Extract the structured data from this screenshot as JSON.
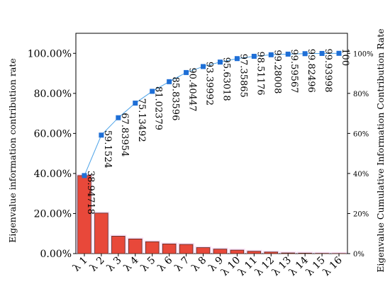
{
  "chart_data": {
    "type": "bar",
    "categories": [
      "λ 1",
      "λ 2",
      "λ 3",
      "λ 4",
      "λ 5",
      "λ 6",
      "λ 7",
      "λ 8",
      "λ 9",
      "λ 10",
      "λ 11",
      "λ 12",
      "λ 13",
      "λ 14",
      "λ 15",
      "λ 16"
    ],
    "series": [
      {
        "type": "bar",
        "axis": "left",
        "values": [
          38.94718,
          20.20522,
          8.6843,
          7.29538,
          5.90887,
          4.81217,
          4.56851,
          2.99545,
          2.23019,
          1.72847,
          1.15311,
          0.76832,
          0.31559,
          0.22929,
          0.11502,
          0.06002
        ],
        "color": "#e8483a"
      },
      {
        "type": "line",
        "axis": "right",
        "values": [
          38.94718,
          59.1524,
          67.83954,
          75.13492,
          81.02379,
          85.83596,
          90.40447,
          93.39992,
          95.63018,
          97.35865,
          98.51176,
          99.28008,
          99.59567,
          99.82496,
          99.93998,
          100
        ],
        "labels": [
          "38.94718",
          "59.1524",
          "67.83954",
          "75.13492",
          "81.02379",
          "85.83596",
          "90.40447",
          "93.39992",
          "95.63018",
          "97.35865",
          "98.51176",
          "99.28008",
          "99.59567",
          "99.82496",
          "99.93998",
          "100"
        ],
        "color": "#4da3e8",
        "marker_color": "#1f6fd6"
      }
    ],
    "ylabel": "Eigenvalue information contribution rate",
    "ylabel_right": "Eigenvalue Cumulative Information Contribution Rate",
    "ylim": [
      0,
      110
    ],
    "left_ticks": [
      "0.00%",
      "20.00%",
      "40.00%",
      "60.00%",
      "80.00%",
      "100.00%"
    ],
    "ylim_right": [
      0,
      110
    ],
    "right_ticks": [
      "0%",
      "20%",
      "40%",
      "60%",
      "80%",
      "100%"
    ],
    "tick_values": [
      0,
      20,
      40,
      60,
      80,
      100
    ]
  }
}
